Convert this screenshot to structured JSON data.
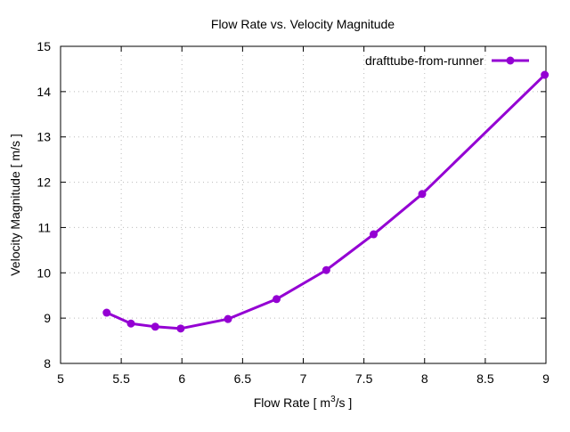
{
  "chart_data": {
    "type": "line",
    "title": "Flow Rate vs. Velocity Magnitude",
    "xlabel_main": "Flow Rate [ m",
    "xlabel_sup": "3",
    "xlabel_tail": "/s ]",
    "ylabel": "Velocity Magnitude [ m/s ]",
    "xlim": [
      5,
      9
    ],
    "ylim": [
      8,
      15
    ],
    "xticks": [
      "5",
      "5.5",
      "6",
      "6.5",
      "7",
      "7.5",
      "8",
      "8.5",
      "9"
    ],
    "yticks": [
      "8",
      "9",
      "10",
      "11",
      "12",
      "13",
      "14",
      "15"
    ],
    "grid": true,
    "legend_position": "top-right",
    "series": [
      {
        "name": "drafttube-from-runner",
        "color": "#9400d3",
        "x": [
          5.38,
          5.58,
          5.78,
          5.99,
          6.38,
          6.78,
          7.19,
          7.58,
          7.98,
          8.99
        ],
        "y": [
          9.12,
          8.88,
          8.81,
          8.77,
          8.98,
          9.42,
          10.06,
          10.85,
          11.74,
          14.37
        ]
      }
    ]
  }
}
